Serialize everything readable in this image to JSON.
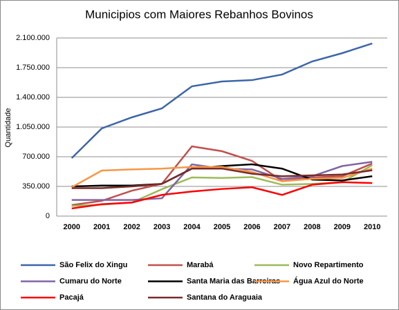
{
  "chart_data": {
    "type": "line",
    "title": "Municipios com Maiores Rebanhos  Bovinos",
    "y_label": "Quantidade",
    "categories": [
      "2000",
      "2001",
      "2002",
      "2003",
      "2004",
      "2005",
      "2006",
      "2007",
      "2008",
      "2009",
      "2010"
    ],
    "ylim": [
      0,
      2100000
    ],
    "yticks": [
      0,
      {
        "value": 350000,
        "label": "350.000"
      },
      {
        "value": 700000,
        "label": "700.000"
      },
      {
        "value": 1050000,
        "label": "1.050.000"
      },
      {
        "value": 1400000,
        "label": "1.400.000"
      },
      {
        "value": 1750000,
        "label": "1.750.000"
      },
      {
        "value": 2100000,
        "label": "2.100.000"
      }
    ],
    "grid": true,
    "series": [
      {
        "name": "São Felix do Xingu",
        "color": "#3c66a8",
        "values": [
          684000,
          1034000,
          1164000,
          1270000,
          1530000,
          1587000,
          1603000,
          1669000,
          1823000,
          1921000,
          2035000
        ]
      },
      {
        "name": "Marabá",
        "color": "#c0504d",
        "values": [
          130000,
          180000,
          300000,
          380000,
          822000,
          765000,
          651000,
          415000,
          456000,
          470000,
          620000
        ]
      },
      {
        "name": "Novo Repartimento",
        "color": "#9bbb59",
        "values": [
          120000,
          135000,
          160000,
          317000,
          456000,
          450000,
          460000,
          370000,
          380000,
          400000,
          600000
        ]
      },
      {
        "name": "Cumaru do Norte",
        "color": "#8064a2",
        "values": [
          190000,
          190000,
          190000,
          210000,
          610000,
          560000,
          550000,
          440000,
          470000,
          590000,
          640000
        ]
      },
      {
        "name": "Santa Maria das Barreiras",
        "color": "#000000",
        "values": [
          350000,
          360000,
          360000,
          380000,
          560000,
          590000,
          610000,
          560000,
          430000,
          420000,
          470000
        ]
      },
      {
        "name": "Água Azul do Norte",
        "color": "#f79646",
        "values": [
          340000,
          537000,
          550000,
          560000,
          580000,
          580000,
          520000,
          410000,
          440000,
          450000,
          560000
        ]
      },
      {
        "name": "Pacajá",
        "color": "#ff0000",
        "values": [
          90000,
          140000,
          160000,
          250000,
          290000,
          320000,
          340000,
          250000,
          370000,
          400000,
          390000
        ]
      },
      {
        "name": "Santana do Araguaia",
        "color": "#772c2a",
        "values": [
          330000,
          330000,
          350000,
          380000,
          560000,
          560000,
          500000,
          470000,
          480000,
          490000,
          540000
        ]
      }
    ]
  }
}
